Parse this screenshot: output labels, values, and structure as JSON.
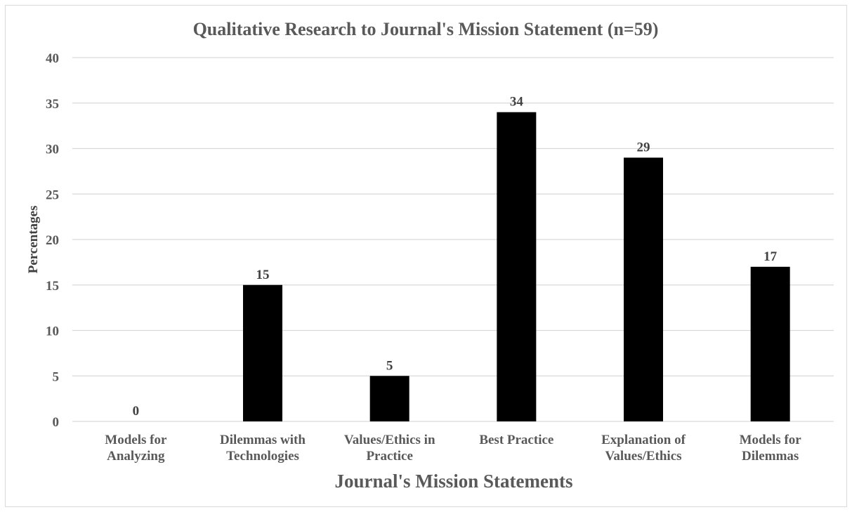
{
  "chart_data": {
    "type": "bar",
    "title": "Qualitative Research to Journal's Mission Statement (n=59)",
    "xlabel": "Journal's Mission Statements",
    "ylabel": "Percentages",
    "categories": [
      [
        "Models for",
        "Analyzing"
      ],
      [
        "Dilemmas with",
        "Technologies"
      ],
      [
        "Values/Ethics in",
        "Practice"
      ],
      [
        "Best Practice"
      ],
      [
        "Explanation of",
        "Values/Ethics"
      ],
      [
        "Models for",
        "Dilemmas"
      ]
    ],
    "values": [
      0,
      15,
      5,
      34,
      29,
      17
    ],
    "data_labels": [
      "0",
      "15",
      "5",
      "34",
      "29",
      "17"
    ],
    "yticks": [
      0,
      5,
      10,
      15,
      20,
      25,
      30,
      35,
      40
    ],
    "ylim": [
      0,
      40
    ],
    "grid": true,
    "legend": "none",
    "bar_color": "#000000",
    "grid_color": "#d9d9d9",
    "text_color": "#595959"
  }
}
